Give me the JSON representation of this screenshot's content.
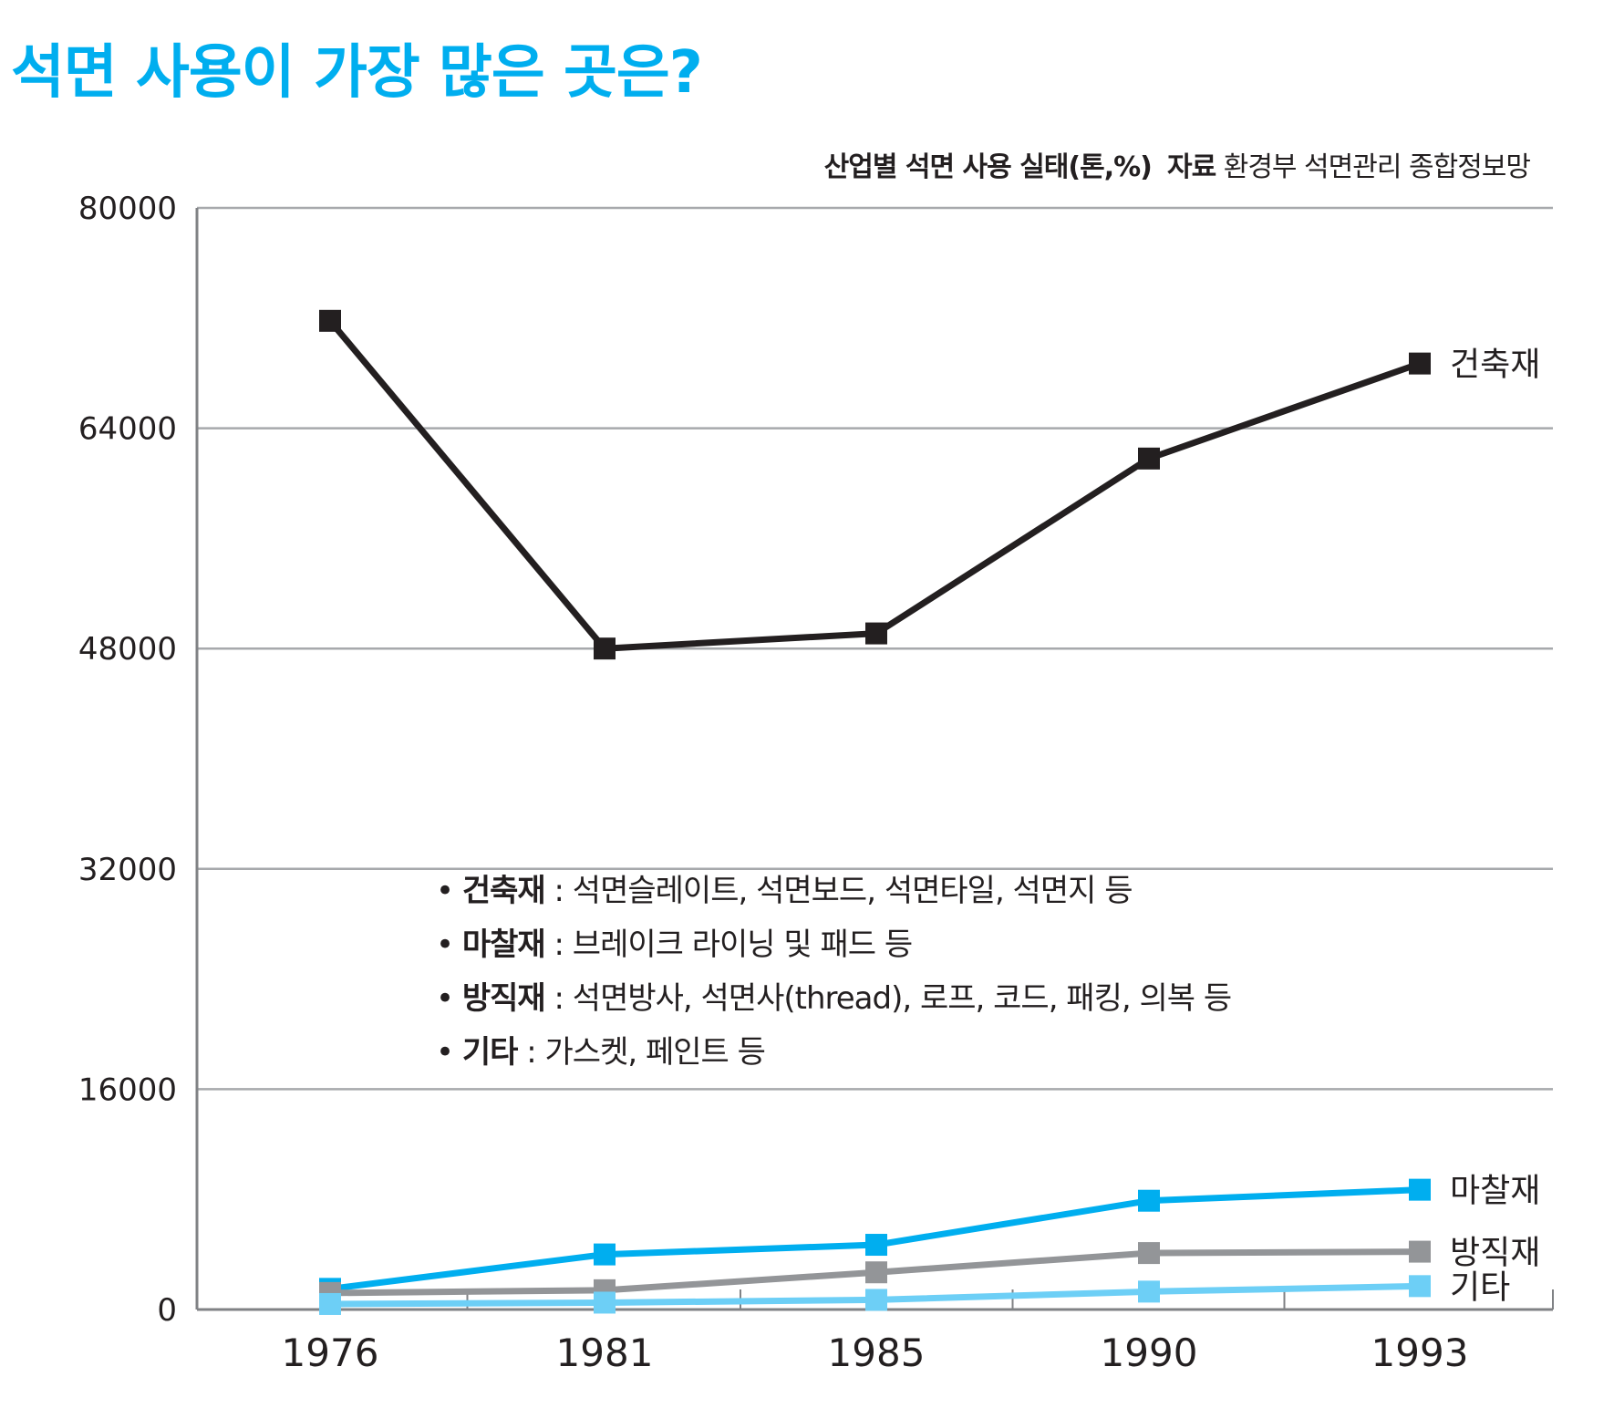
{
  "title": "석면 사용이 가장 많은 곳은?",
  "source": {
    "label": "산업별 석면 사용 실태(톤,%)",
    "source_label": "자료",
    "source_name": "환경부 석면관리 종합정보망"
  },
  "notes": [
    {
      "term": "건축재",
      "desc": " : 석면슬레이트, 석면보드, 석면타일, 석면지 등"
    },
    {
      "term": "마찰재",
      "desc": " : 브레이크 라이닝 및 패드 등"
    },
    {
      "term": "방직재",
      "desc": " : 석면방사, 석면사(thread), 로프, 코드, 패킹, 의복 등"
    },
    {
      "term": "기타",
      "desc": " : 가스켓, 페인트 등"
    }
  ],
  "colors": {
    "title": "#00aeef",
    "grid": "#a7a9ac",
    "text": "#231f20"
  },
  "chart_data": {
    "type": "line",
    "title": "",
    "xlabel": "",
    "ylabel": "",
    "categories": [
      "1976",
      "1981",
      "1985",
      "1990",
      "1993"
    ],
    "y_ticks": [
      "0",
      "16000",
      "32000",
      "48000",
      "64000",
      "80000"
    ],
    "ylim": [
      0,
      80000
    ],
    "grid": true,
    "series": [
      {
        "name": "건축재",
        "color": "#231f20",
        "values": [
          71800,
          48000,
          49100,
          61800,
          68700
        ]
      },
      {
        "name": "마찰재",
        "color": "#00aeef",
        "values": [
          1500,
          4000,
          4700,
          7900,
          8700
        ]
      },
      {
        "name": "방직재",
        "color": "#939598",
        "values": [
          1200,
          1400,
          2700,
          4100,
          4200
        ]
      },
      {
        "name": "기타",
        "color": "#6dcff6",
        "values": [
          400,
          500,
          700,
          1300,
          1700
        ]
      }
    ]
  }
}
